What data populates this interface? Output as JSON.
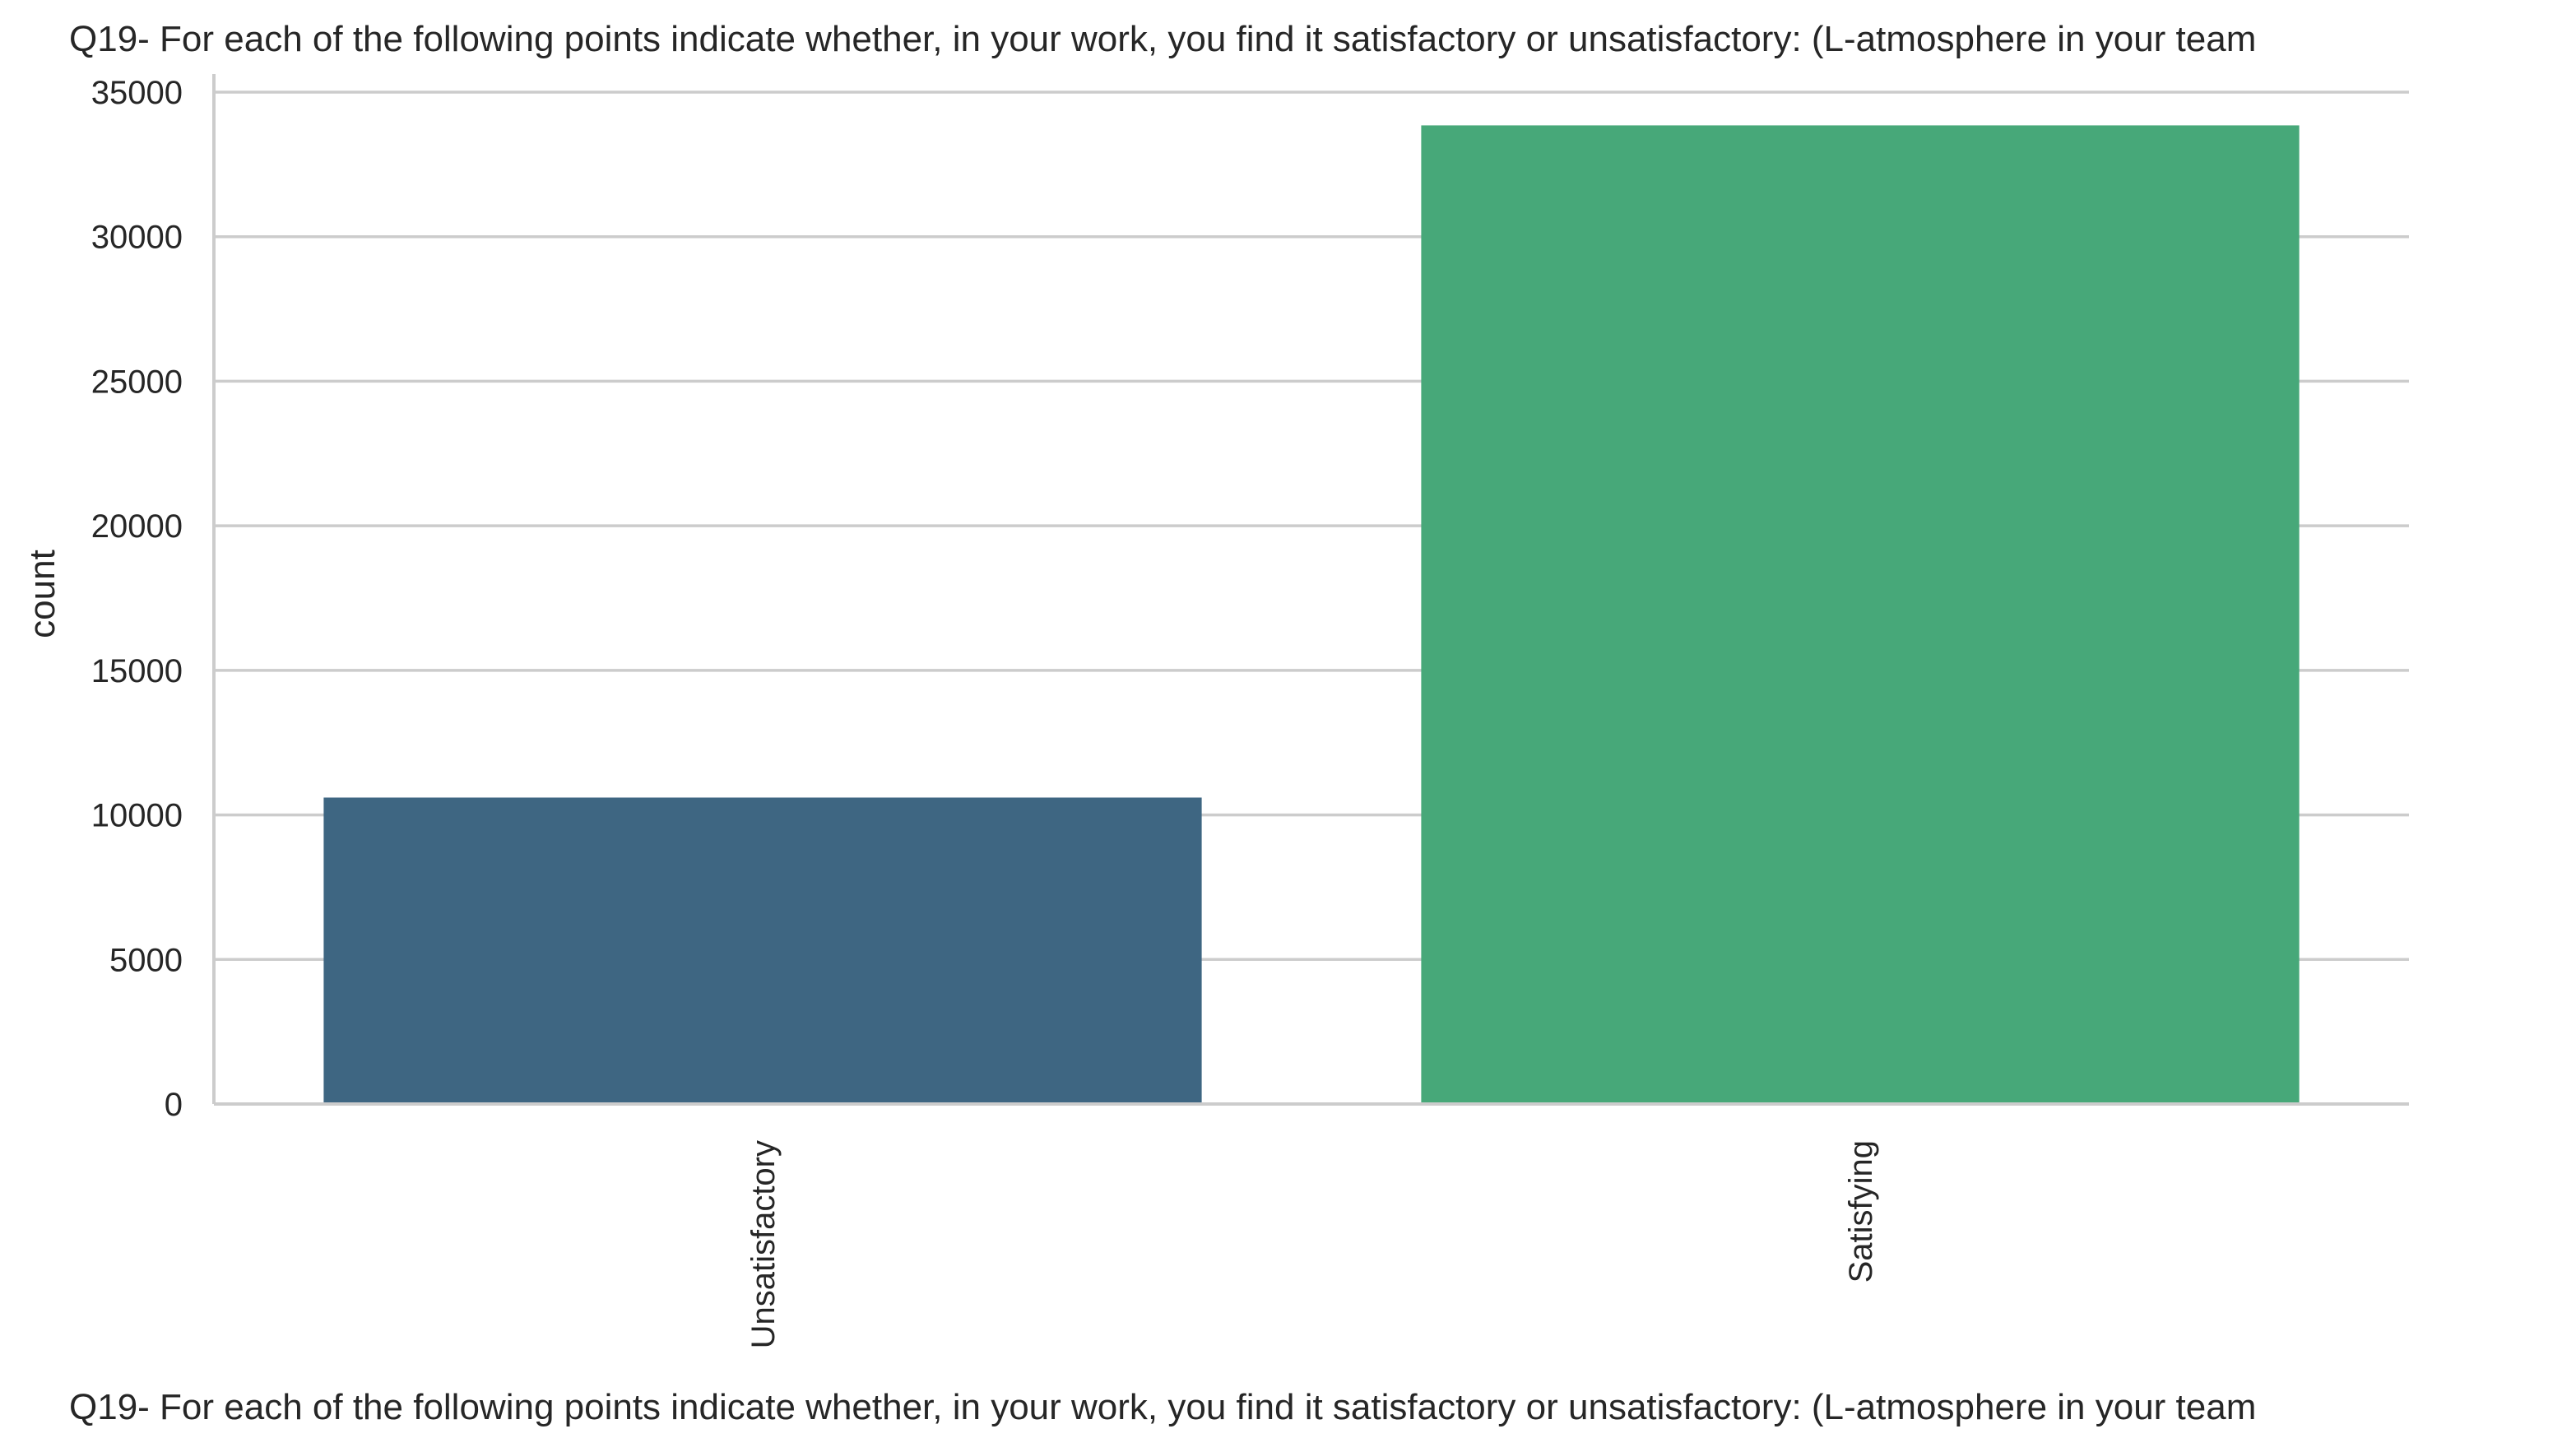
{
  "chart_data": {
    "type": "bar",
    "title": "Q19- For each of the following points indicate whether, in your work, you find it satisfactory or unsatisfactory: (L-atmosphere in your team",
    "xlabel": "Q19- For each of the following points indicate whether, in your work, you find it satisfactory or unsatisfactory: (L-atmosphere in your team",
    "ylabel": "count",
    "categories": [
      "Unsatisfactory",
      "Satisfying"
    ],
    "values": [
      10600,
      33850
    ],
    "colors": [
      "#3e6682",
      "#47a879"
    ],
    "ylim": [
      0,
      35000
    ],
    "yticks": [
      0,
      5000,
      10000,
      15000,
      20000,
      25000,
      30000,
      35000
    ],
    "grid": "horizontal",
    "legend": "none"
  }
}
